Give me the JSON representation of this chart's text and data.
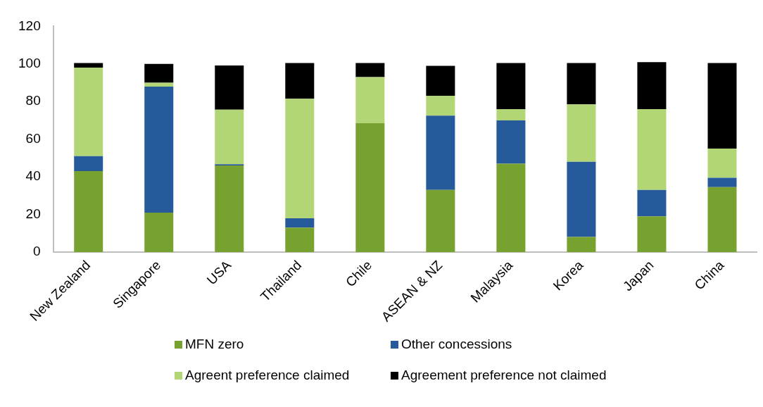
{
  "chart_data": {
    "type": "bar",
    "stacked": true,
    "categories": [
      "New Zealand",
      "Singapore",
      "USA",
      "Thailand",
      "Chile",
      "ASEAN & NZ",
      "Malaysia",
      "Korea",
      "Japan",
      "China"
    ],
    "series": [
      {
        "name": "MFN zero",
        "color": "#78a22f",
        "values": [
          43,
          21,
          46,
          13,
          68.5,
          33,
          47,
          8,
          19,
          34.5
        ]
      },
      {
        "name": "Other concessions",
        "color": "#265a9a",
        "values": [
          8,
          67,
          0.7,
          5,
          0,
          39.5,
          23,
          40,
          14,
          5
        ]
      },
      {
        "name": "Agreent preference claimed",
        "color": "#b2d675",
        "values": [
          47,
          2,
          29,
          63.5,
          24.5,
          10.5,
          6,
          30.5,
          43,
          15.5
        ]
      },
      {
        "name": "Agreement preference not claimed",
        "color": "#000000",
        "values": [
          2.5,
          10,
          23.5,
          19,
          7.5,
          16,
          24.5,
          22,
          25,
          45.5
        ]
      }
    ],
    "ylim": [
      0,
      120
    ],
    "yticks": [
      0,
      20,
      40,
      60,
      80,
      100,
      120
    ],
    "grid": false,
    "legend": "bottom"
  }
}
